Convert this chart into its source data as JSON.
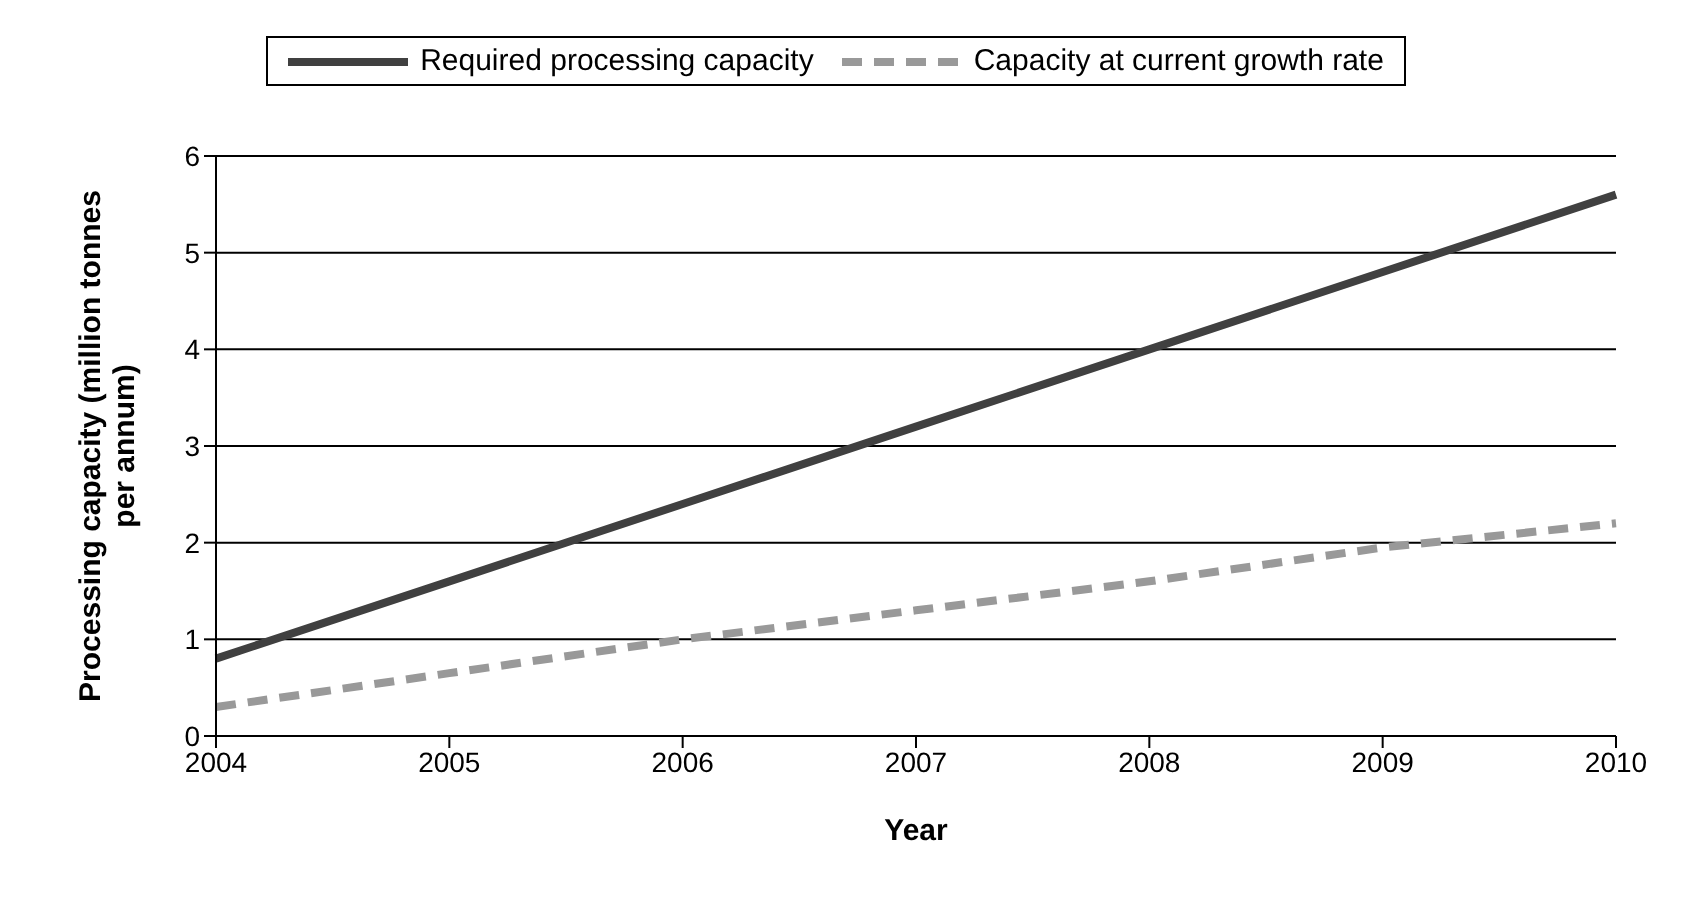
{
  "chart_data": {
    "type": "line",
    "xlabel": "Year",
    "ylabel": "Processing capacity (million tonnes per annum)",
    "categories": [
      "2004",
      "2005",
      "2006",
      "2007",
      "2008",
      "2009",
      "2010"
    ],
    "series": [
      {
        "name": "Required processing capacity",
        "color": "#404040",
        "line_style": "solid",
        "values": [
          0.8,
          1.6,
          2.4,
          3.2,
          4.0,
          4.8,
          5.6
        ]
      },
      {
        "name": "Capacity at current growth rate",
        "color": "#999999",
        "line_style": "dashed",
        "values": [
          0.3,
          0.65,
          1.0,
          1.3,
          1.6,
          1.95,
          2.2
        ]
      }
    ],
    "ylim": [
      0,
      6
    ],
    "yticks": [
      0,
      1,
      2,
      3,
      4,
      5,
      6
    ],
    "grid": "y",
    "legend": "top",
    "marker": "none"
  }
}
